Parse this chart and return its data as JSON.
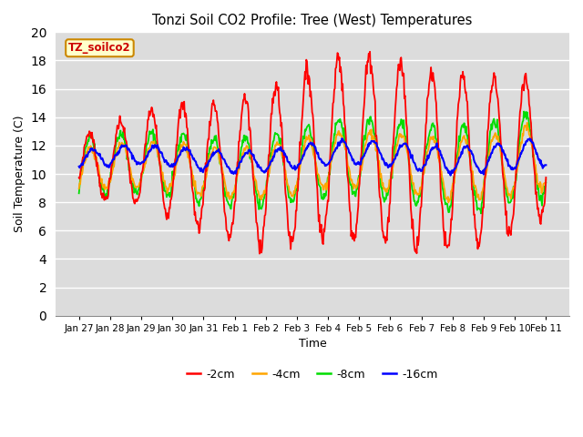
{
  "title": "Tonzi Soil CO2 Profile: Tree (West) Temperatures",
  "xlabel": "Time",
  "ylabel": "Soil Temperature (C)",
  "ylim": [
    0,
    20
  ],
  "yticks": [
    0,
    2,
    4,
    6,
    8,
    10,
    12,
    14,
    16,
    18,
    20
  ],
  "bg_color": "#dcdcdc",
  "fig_color": "#ffffff",
  "legend_label": "TZ_soilco2",
  "series": {
    "-2cm": {
      "color": "#ff0000",
      "lw": 1.3
    },
    "-4cm": {
      "color": "#ffa500",
      "lw": 1.3
    },
    "-8cm": {
      "color": "#00dd00",
      "lw": 1.3
    },
    "-16cm": {
      "color": "#0000ff",
      "lw": 1.5
    }
  },
  "x_tick_labels": [
    "Jan 27",
    "Jan 28",
    "Jan 29",
    "Jan 30",
    "Jan 31",
    "Feb 1",
    "Feb 2",
    "Feb 3",
    "Feb 4",
    "Feb 5",
    "Feb 6",
    "Feb 7",
    "Feb 8",
    "Feb 9",
    "Feb 10",
    "Feb 11"
  ],
  "n_days": 15
}
